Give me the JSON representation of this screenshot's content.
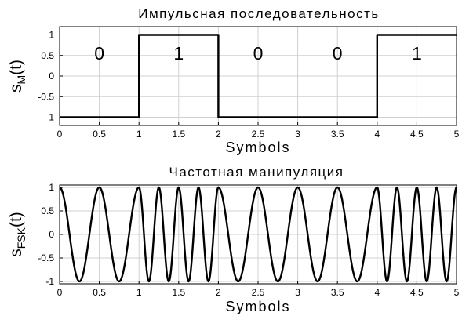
{
  "chart_data": [
    {
      "type": "line",
      "title": "Импульсная последовательность",
      "xlabel": "Symbols",
      "ylabel": {
        "base": "s",
        "sub": "M",
        "arg": "(t)"
      },
      "xlim": [
        0,
        5
      ],
      "ylim": [
        -1.2,
        1.2
      ],
      "grid": true,
      "x_ticks": [
        0,
        0.5,
        1,
        1.5,
        2,
        2.5,
        3,
        3.5,
        4,
        4.5,
        5
      ],
      "y_ticks": [
        -1,
        -0.5,
        0,
        0.5,
        1
      ],
      "bits": [
        0,
        1,
        0,
        0,
        1
      ],
      "series": [
        {
          "x": [
            0,
            1,
            1,
            2,
            2,
            4,
            4,
            5
          ],
          "y": [
            -1,
            -1,
            1,
            1,
            -1,
            -1,
            1,
            1
          ]
        }
      ]
    },
    {
      "type": "line",
      "title": "Частотная манипуляция",
      "xlabel": "Symbols",
      "ylabel": {
        "base": "s",
        "sub": "FSK",
        "arg": "(t)"
      },
      "xlim": [
        0,
        5
      ],
      "ylim": [
        -1.05,
        1.05
      ],
      "grid": true,
      "x_ticks": [
        0,
        0.5,
        1,
        1.5,
        2,
        2.5,
        3,
        3.5,
        4,
        4.5,
        5
      ],
      "y_ticks": [
        -1,
        -0.5,
        0,
        0.5,
        1
      ],
      "series": [
        {
          "function": "cos",
          "cycles_per_symbol_for_bit": {
            "0": 2,
            "1": 4
          }
        }
      ]
    }
  ]
}
